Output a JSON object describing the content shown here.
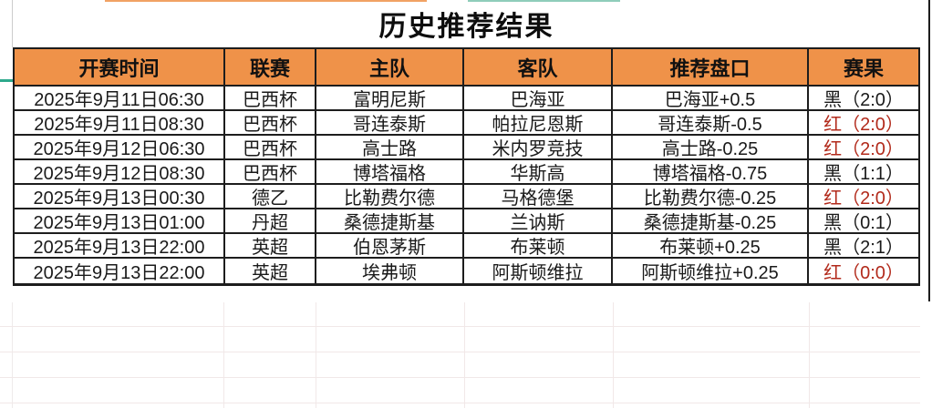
{
  "title": "历史推荐结果",
  "table": {
    "headers": [
      "开赛时间",
      "联赛",
      "主队",
      "客队",
      "推荐盘口",
      "赛果"
    ],
    "column_keys": [
      "time",
      "league",
      "home",
      "away",
      "handicap",
      "result"
    ],
    "rows": [
      {
        "time": "2025年9月11日06:30",
        "league": "巴西杯",
        "home": "富明尼斯",
        "away": "巴海亚",
        "handicap": "巴海亚+0.5",
        "result": "黑（2:0）",
        "result_color": "black"
      },
      {
        "time": "2025年9月11日08:30",
        "league": "巴西杯",
        "home": "哥连泰斯",
        "away": "帕拉尼恩斯",
        "handicap": "哥连泰斯-0.5",
        "result": "红（2:0）",
        "result_color": "red"
      },
      {
        "time": "2025年9月12日06:30",
        "league": "巴西杯",
        "home": "高士路",
        "away": "米内罗竞技",
        "handicap": "高士路-0.25",
        "result": "红（2:0）",
        "result_color": "red"
      },
      {
        "time": "2025年9月12日08:30",
        "league": "巴西杯",
        "home": "博塔福格",
        "away": "华斯高",
        "handicap": "博塔福格-0.75",
        "result": "黑（1:1）",
        "result_color": "black"
      },
      {
        "time": "2025年9月13日00:30",
        "league": "德乙",
        "home": "比勒费尔德",
        "away": "马格德堡",
        "handicap": "比勒费尔德-0.25",
        "result": "红（2:0）",
        "result_color": "red"
      },
      {
        "time": "2025年9月13日01:00",
        "league": "丹超",
        "home": "桑德捷斯基",
        "away": "兰讷斯",
        "handicap": "桑德捷斯基-0.25",
        "result": "黑（0:1）",
        "result_color": "black"
      },
      {
        "time": "2025年9月13日22:00",
        "league": "英超",
        "home": "伯恩茅斯",
        "away": "布莱顿",
        "handicap": "布莱顿+0.25",
        "result": "黑（2:1）",
        "result_color": "black"
      },
      {
        "time": "2025年9月13日22:00",
        "league": "英超",
        "home": "埃弗顿",
        "away": "阿斯顿维拉",
        "handicap": "阿斯顿维拉+0.25",
        "result": "红（0:0）",
        "result_color": "red"
      }
    ]
  },
  "colors": {
    "header_bg": "#EF9249",
    "result_red": "#B22A1B",
    "result_black": "#1A1A1A",
    "border": "#1D1D1D",
    "selection_teal": "#2EA98C"
  }
}
